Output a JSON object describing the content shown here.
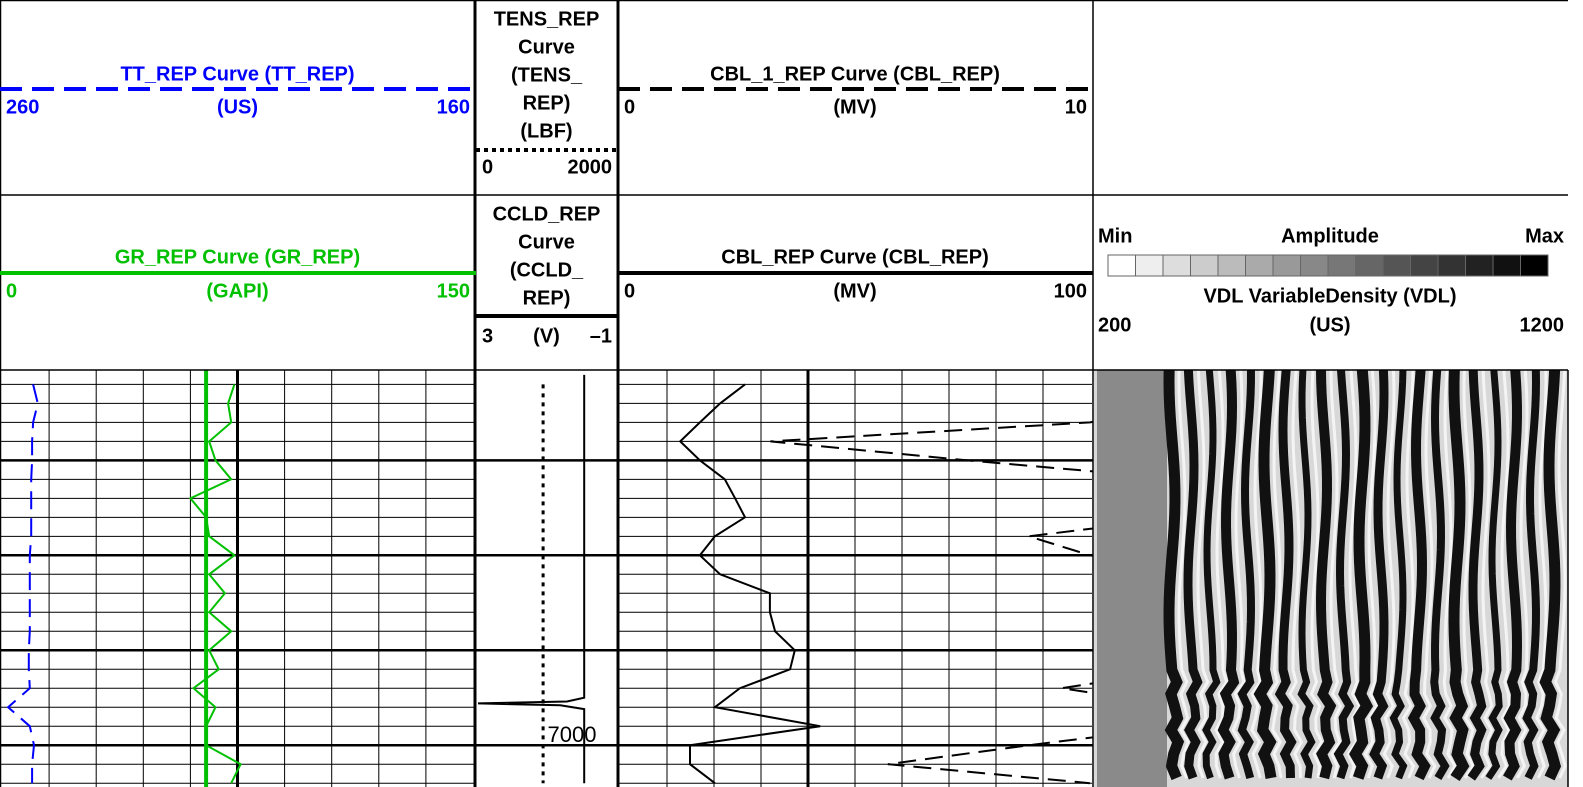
{
  "chart_data": {
    "type": "well-log",
    "ylim": [
      6960.8,
      7004.4
    ],
    "yticks": [
      7000
    ],
    "major_grid": [
      6970,
      6980,
      6990,
      7000
    ],
    "minor_step": 2,
    "depth": [
      6962,
      6964,
      6966,
      6968,
      6970,
      6972,
      6974,
      6976,
      6978,
      6980,
      6982,
      6984,
      6986,
      6988,
      6990,
      6992,
      6994,
      6996,
      6998,
      7000,
      7002,
      7004
    ],
    "curves": [
      {
        "title_lines": [
          "TT_REP Curve  (TT_REP)"
        ],
        "unit": "(US)",
        "color": "#0000ff",
        "style": "dashed",
        "track": 0,
        "row": 0,
        "xlim": [
          260,
          160
        ],
        "xticks": [
          260,
          160
        ],
        "values": [
          253.4,
          252.4,
          253.4,
          253.6,
          253.6,
          253.8,
          253.8,
          253.8,
          253.8,
          254.1,
          254.1,
          254.1,
          254.1,
          254.1,
          254.3,
          254.3,
          254.1,
          258.7,
          254.1,
          253.2,
          253.6,
          253.6
        ]
      },
      {
        "title_lines": [
          "GR_REP Curve  (GR_REP)"
        ],
        "unit": "(GAPI)",
        "color": "#00c000",
        "style": "solid",
        "track": 0,
        "row": 1,
        "xlim": [
          0,
          150
        ],
        "xticks": [
          0,
          150
        ],
        "baseline": 65,
        "values": [
          74,
          72,
          73,
          66,
          68,
          73,
          60,
          65,
          66,
          74,
          66,
          71,
          66,
          73,
          66,
          69,
          61,
          68,
          65,
          65,
          76,
          73
        ]
      },
      {
        "title_lines": [
          "TENS_REP",
          "Curve",
          "(TENS_",
          "REP)"
        ],
        "unit": "(LBF)",
        "color": "#000000",
        "style": "dotted",
        "track": 1,
        "row": 0,
        "xlim": [
          0,
          2000
        ],
        "xticks": [
          0,
          2000
        ],
        "values": [
          950,
          950,
          950,
          950,
          950,
          950,
          950,
          950,
          950,
          950,
          950,
          950,
          950,
          950,
          950,
          950,
          950,
          950,
          950,
          950,
          950,
          950
        ]
      },
      {
        "title_lines": [
          "CCLD_REP",
          "Curve",
          "(CCLD_",
          "REP)"
        ],
        "unit": "(V)",
        "color": "#000000",
        "style": "solid",
        "track": 1,
        "row": 1,
        "xlim": [
          3,
          -1
        ],
        "xticks": [
          3,
          {
            "value": -1,
            "label": "–1"
          }
        ],
        "depth": [
          6961,
          6995,
          6995.4,
          6995.6,
          6995.8,
          6996.2,
          7004
        ],
        "values": [
          -0.1,
          -0.1,
          0.4,
          3,
          0.6,
          -0.1,
          -0.1
        ]
      },
      {
        "title_lines": [
          "CBL_1_REP Curve  (CBL_REP)"
        ],
        "unit": "(MV)",
        "color": "#000000",
        "style": "dashed",
        "track": 2,
        "row": 0,
        "xlim": [
          0,
          10
        ],
        "xticks": [
          0,
          10
        ],
        "values": [
          12,
          12,
          10,
          3.2,
          7.4,
          12,
          12,
          12,
          8.7,
          10,
          12,
          12,
          12,
          12,
          12,
          12,
          9.4,
          12,
          12,
          8.7,
          5.7,
          10
        ]
      },
      {
        "title_lines": [
          "CBL_REP Curve  (CBL_REP)"
        ],
        "unit": "(MV)",
        "color": "#000000",
        "style": "solid",
        "track": 2,
        "row": 1,
        "xlim": [
          0,
          100
        ],
        "xticks": [
          0,
          100
        ],
        "values": [
          26.6,
          21.3,
          17,
          12.8,
          17,
          22.3,
          24.5,
          26.6,
          20.2,
          17,
          21.3,
          31.9,
          31.9,
          33,
          37.2,
          36.2,
          25.5,
          20.2,
          42.6,
          14.9,
          14.9,
          20.2
        ]
      }
    ],
    "vdl": {
      "title": "VDL VariableDensity (VDL)",
      "unit": "(US)",
      "xlim": [
        200,
        1200
      ],
      "xticks": [
        200,
        1200
      ],
      "colorbar": {
        "label": "Amplitude",
        "min_label": "Min",
        "max_label": "Max",
        "steps": 16
      }
    }
  }
}
